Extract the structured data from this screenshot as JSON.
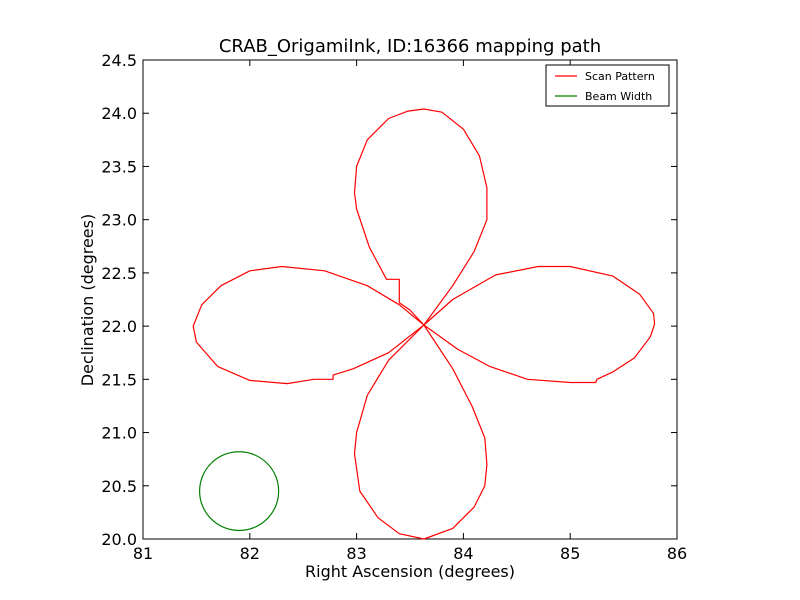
{
  "chart_data": {
    "type": "line",
    "title": "CRAB_OrigamiInk, ID:16366 mapping path",
    "xlabel": "Right Ascension (degrees)",
    "ylabel": "Declination (degrees)",
    "xlim": [
      81,
      86
    ],
    "ylim": [
      20.0,
      24.5
    ],
    "xticks": [
      "81",
      "82",
      "83",
      "84",
      "85",
      "86"
    ],
    "yticks": [
      "20.0",
      "20.5",
      "21.0",
      "21.5",
      "22.0",
      "22.5",
      "23.0",
      "23.5",
      "24.0",
      "24.5"
    ],
    "grid": false,
    "legend_position": "top-right",
    "series": [
      {
        "name": "Scan Pattern",
        "color": "#ff0000",
        "points": [
          [
            83.63,
            22.01
          ],
          [
            83.5,
            22.15
          ],
          [
            83.4,
            22.22
          ],
          [
            83.4,
            22.31
          ],
          [
            83.4,
            22.44
          ],
          [
            83.28,
            22.44
          ],
          [
            83.12,
            22.74
          ],
          [
            83.0,
            23.1
          ],
          [
            82.98,
            23.25
          ],
          [
            83.0,
            23.5
          ],
          [
            83.1,
            23.75
          ],
          [
            83.3,
            23.95
          ],
          [
            83.48,
            24.02
          ],
          [
            83.63,
            24.04
          ],
          [
            83.8,
            24.01
          ],
          [
            84.0,
            23.85
          ],
          [
            84.15,
            23.6
          ],
          [
            84.22,
            23.3
          ],
          [
            84.22,
            23.0
          ],
          [
            84.1,
            22.7
          ],
          [
            83.9,
            22.38
          ],
          [
            83.63,
            22.01
          ],
          [
            83.9,
            22.25
          ],
          [
            84.3,
            22.48
          ],
          [
            84.7,
            22.56
          ],
          [
            85.0,
            22.56
          ],
          [
            85.4,
            22.47
          ],
          [
            85.65,
            22.3
          ],
          [
            85.78,
            22.12
          ],
          [
            85.79,
            22.02
          ],
          [
            85.75,
            21.9
          ],
          [
            85.6,
            21.7
          ],
          [
            85.4,
            21.57
          ],
          [
            85.25,
            21.5
          ],
          [
            85.24,
            21.47
          ],
          [
            85.0,
            21.47
          ],
          [
            84.6,
            21.5
          ],
          [
            84.25,
            21.62
          ],
          [
            83.95,
            21.78
          ],
          [
            83.63,
            22.01
          ],
          [
            83.9,
            21.6
          ],
          [
            84.08,
            21.25
          ],
          [
            84.2,
            20.95
          ],
          [
            84.22,
            20.7
          ],
          [
            84.2,
            20.5
          ],
          [
            84.1,
            20.3
          ],
          [
            83.9,
            20.1
          ],
          [
            83.63,
            20.0
          ],
          [
            83.4,
            20.05
          ],
          [
            83.2,
            20.2
          ],
          [
            83.03,
            20.45
          ],
          [
            82.98,
            20.8
          ],
          [
            83.0,
            21.0
          ],
          [
            83.1,
            21.35
          ],
          [
            83.3,
            21.68
          ],
          [
            83.63,
            22.01
          ],
          [
            83.3,
            21.75
          ],
          [
            82.97,
            21.6
          ],
          [
            82.78,
            21.54
          ],
          [
            82.78,
            21.5
          ],
          [
            82.6,
            21.5
          ],
          [
            82.35,
            21.46
          ],
          [
            82.0,
            21.49
          ],
          [
            81.7,
            21.62
          ],
          [
            81.5,
            21.85
          ],
          [
            81.47,
            22.0
          ],
          [
            81.55,
            22.2
          ],
          [
            81.73,
            22.38
          ],
          [
            82.0,
            22.52
          ],
          [
            82.3,
            22.56
          ],
          [
            82.7,
            22.52
          ],
          [
            83.1,
            22.38
          ],
          [
            83.4,
            22.2
          ],
          [
            83.63,
            22.01
          ]
        ]
      },
      {
        "name": "Beam Width",
        "color": "#008000",
        "shape": "circle",
        "center": [
          81.9,
          20.45
        ],
        "radius": 0.37
      }
    ]
  }
}
